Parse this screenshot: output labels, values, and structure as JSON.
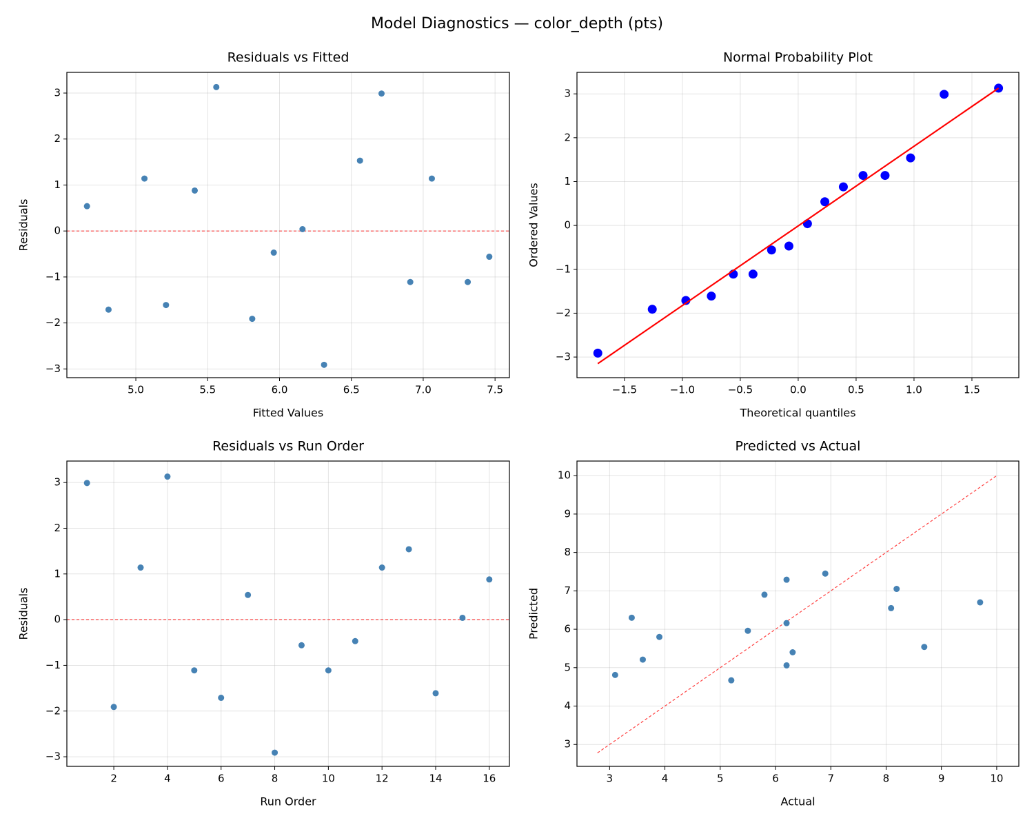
{
  "title": "Model Diagnostics — color_depth (pts)",
  "chart_data": [
    {
      "type": "scatter",
      "title": "Residuals vs Fitted",
      "xlabel": "Fitted Values",
      "ylabel": "Residuals",
      "grid": true,
      "xlim": [
        4.52,
        7.6
      ],
      "ylim": [
        -3.19,
        3.45
      ],
      "xticks": [
        {
          "value": 5,
          "label": "5.0"
        },
        5.5,
        {
          "value": 6,
          "label": "6.0"
        },
        6.5,
        {
          "value": 7,
          "label": "7.0"
        },
        7.5
      ],
      "yticks": [
        {
          "value": -3,
          "label": "−3"
        },
        {
          "value": -2,
          "label": "−2"
        },
        {
          "value": -1,
          "label": "−1"
        },
        0,
        1,
        2,
        3
      ],
      "series": [
        {
          "color": "#4682b4",
          "x": [
            4.66,
            4.81,
            5.06,
            5.21,
            5.41,
            5.56,
            5.81,
            5.96,
            6.16,
            6.31,
            6.56,
            6.71,
            6.91,
            7.06,
            7.31,
            7.46
          ],
          "values": [
            0.54,
            -1.71,
            1.14,
            -1.61,
            0.88,
            3.13,
            -1.91,
            -0.47,
            0.04,
            -2.91,
            1.53,
            2.99,
            -1.11,
            1.14,
            -1.11,
            -0.56
          ]
        }
      ],
      "hline": 0,
      "hline_color": "red"
    },
    {
      "type": "probplot",
      "title": "Normal Probability Plot",
      "xlabel": "Theoretical quantiles",
      "ylabel": "Ordered Values",
      "grid": true,
      "xlim": [
        -1.91,
        1.905
      ],
      "ylim": [
        -3.47,
        3.49
      ],
      "xticks": [
        {
          "value": -1.5,
          "label": "−1.5"
        },
        {
          "value": -1,
          "label": "−1.0"
        },
        {
          "value": -0.5,
          "label": "−0.5"
        },
        {
          "value": 0,
          "label": "0.0"
        },
        0.5,
        {
          "value": 1,
          "label": "1.0"
        },
        1.5
      ],
      "yticks": [
        {
          "value": -3,
          "label": "−3"
        },
        {
          "value": -2,
          "label": "−2"
        },
        {
          "value": -1,
          "label": "−1"
        },
        0,
        1,
        2,
        3
      ],
      "series": [
        {
          "color": "blue",
          "x": [
            -1.73,
            -1.26,
            -0.97,
            -0.75,
            -0.56,
            -0.39,
            -0.23,
            -0.08,
            0.08,
            0.23,
            0.39,
            0.56,
            0.75,
            0.97,
            1.26,
            1.73
          ],
          "values": [
            -2.91,
            -1.91,
            -1.71,
            -1.61,
            -1.11,
            -1.11,
            -0.56,
            -0.47,
            0.04,
            0.54,
            0.88,
            1.14,
            1.14,
            1.54,
            2.99,
            3.13
          ]
        }
      ],
      "line": {
        "color": "red",
        "dashed": false,
        "x": [
          -1.73,
          1.73
        ],
        "values": [
          -3.15,
          3.13
        ]
      }
    },
    {
      "type": "scatter",
      "title": "Residuals vs Run Order",
      "xlabel": "Run Order",
      "ylabel": "Residuals",
      "grid": true,
      "xlim": [
        0.25,
        16.75
      ],
      "ylim": [
        -3.21,
        3.47
      ],
      "xticks": [
        2,
        4,
        6,
        8,
        10,
        12,
        14,
        16
      ],
      "yticks": [
        {
          "value": -3,
          "label": "−3"
        },
        {
          "value": -2,
          "label": "−2"
        },
        {
          "value": -1,
          "label": "−1"
        },
        0,
        1,
        2,
        3
      ],
      "series": [
        {
          "color": "#4682b4",
          "x": [
            1,
            2,
            3,
            4,
            5,
            6,
            7,
            8,
            9,
            10,
            11,
            12,
            13,
            14,
            15,
            16
          ],
          "values": [
            2.99,
            -1.91,
            1.14,
            3.13,
            -1.11,
            -1.71,
            0.54,
            -2.91,
            -0.56,
            -1.11,
            -0.47,
            1.14,
            1.54,
            -1.61,
            0.04,
            0.88
          ]
        }
      ],
      "hline": 0,
      "hline_color": "red"
    },
    {
      "type": "scatter",
      "title": "Predicted vs Actual",
      "xlabel": "Actual",
      "ylabel": "Predicted",
      "grid": true,
      "xlim": [
        2.41,
        10.4
      ],
      "ylim": [
        2.43,
        10.38
      ],
      "xticks": [
        3,
        4,
        5,
        6,
        7,
        8,
        9,
        10
      ],
      "yticks": [
        3,
        4,
        5,
        6,
        7,
        8,
        9,
        10
      ],
      "series": [
        {
          "color": "#4682b4",
          "x": [
            3.1,
            3.4,
            3.6,
            3.9,
            5.2,
            5.5,
            5.8,
            6.2,
            6.2,
            6.2,
            6.31,
            6.9,
            8.09,
            8.19,
            8.69,
            9.7
          ],
          "values": [
            4.81,
            6.3,
            5.21,
            5.8,
            4.67,
            5.96,
            6.9,
            7.29,
            6.16,
            5.06,
            5.4,
            7.45,
            6.55,
            7.05,
            5.54,
            6.7
          ]
        }
      ],
      "line": {
        "color": "red",
        "dashed": true,
        "x": [
          2.78,
          10.01
        ],
        "values": [
          2.78,
          10.01
        ]
      }
    }
  ]
}
